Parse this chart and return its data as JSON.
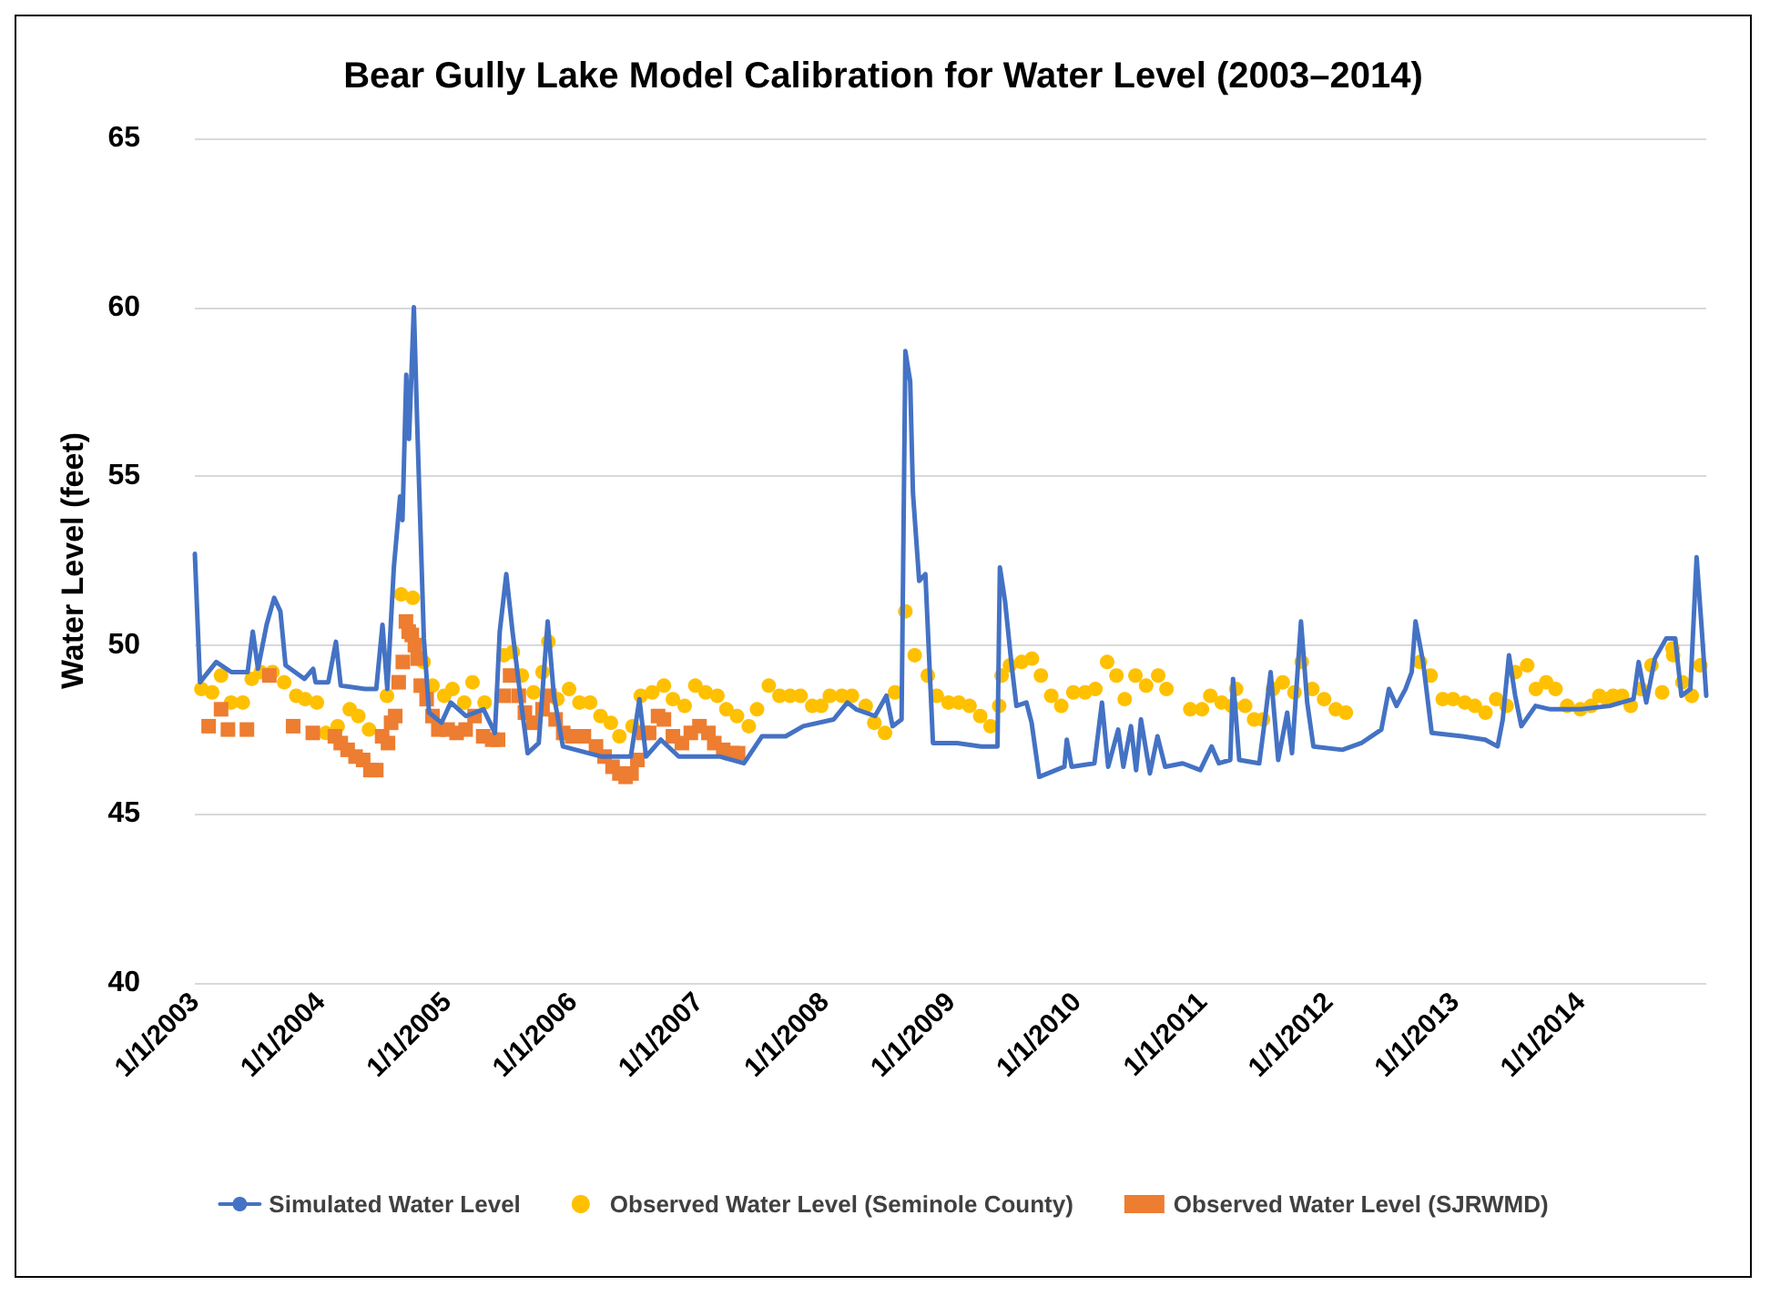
{
  "chart_data": {
    "type": "line",
    "title": "Bear Gully Lake Model Calibration for Water Level (2003–2014)",
    "ylabel": "Water Level (feet)",
    "xlim": [
      "2003-01-01",
      "2014-12-31"
    ],
    "xticks": [
      {
        "value": "2003-01-01",
        "label": "1/1/2003"
      },
      {
        "value": "2004-01-01",
        "label": "1/1/2004"
      },
      {
        "value": "2005-01-01",
        "label": "1/1/2005"
      },
      {
        "value": "2006-01-01",
        "label": "1/1/2006"
      },
      {
        "value": "2007-01-01",
        "label": "1/1/2007"
      },
      {
        "value": "2008-01-01",
        "label": "1/1/2008"
      },
      {
        "value": "2009-01-01",
        "label": "1/1/2009"
      },
      {
        "value": "2010-01-01",
        "label": "1/1/2010"
      },
      {
        "value": "2011-01-01",
        "label": "1/1/2011"
      },
      {
        "value": "2012-01-01",
        "label": "1/1/2012"
      },
      {
        "value": "2013-01-01",
        "label": "1/1/2013"
      },
      {
        "value": "2014-01-01",
        "label": "1/1/2014"
      }
    ],
    "ylim": [
      40,
      65
    ],
    "yticks": [
      40,
      45,
      50,
      55,
      60,
      65
    ],
    "grid": "y",
    "legend": "bottom",
    "series": [
      {
        "name": "Simulated Water Level",
        "marker": "none",
        "line_style": "solid",
        "color": "#4472c4",
        "x": [
          "2003-01-01",
          "2003-01-16",
          "2003-03-04",
          "2003-04-17",
          "2003-06-03",
          "2003-06-18",
          "2003-07-03",
          "2003-07-28",
          "2003-08-19",
          "2003-09-06",
          "2003-09-21",
          "2003-11-15",
          "2003-12-10",
          "2003-12-17",
          "2004-01-23",
          "2004-02-14",
          "2004-02-28",
          "2004-05-08",
          "2004-06-10",
          "2004-06-28",
          "2004-07-12",
          "2004-07-31",
          "2004-08-18",
          "2004-08-25",
          "2004-09-05",
          "2004-09-13",
          "2004-09-27",
          "2004-10-08",
          "2004-10-26",
          "2004-11-10",
          "2004-12-16",
          "2005-01-12",
          "2005-02-25",
          "2005-04-17",
          "2005-05-20",
          "2005-06-03",
          "2005-06-22",
          "2005-07-10",
          "2005-08-04",
          "2005-08-23",
          "2005-09-24",
          "2005-10-20",
          "2005-11-07",
          "2005-12-03",
          "2006-03-26",
          "2006-06-18",
          "2006-07-13",
          "2006-08-01",
          "2006-09-13",
          "2006-11-04",
          "2007-02-14",
          "2007-03-04",
          "2007-05-12",
          "2007-07-03",
          "2007-09-10",
          "2007-10-31",
          "2008-01-27",
          "2008-03-07",
          "2008-04-01",
          "2008-05-26",
          "2008-06-28",
          "2008-07-16",
          "2008-08-11",
          "2008-08-22",
          "2008-09-05",
          "2008-09-13",
          "2008-10-01",
          "2008-10-19",
          "2008-11-03",
          "2008-11-10",
          "2009-01-19",
          "2009-03-30",
          "2009-05-16",
          "2009-05-23",
          "2009-06-07",
          "2009-06-25",
          "2009-07-10",
          "2009-08-08",
          "2009-08-23",
          "2009-09-14",
          "2009-11-26",
          "2009-12-03",
          "2009-12-17",
          "2010-02-21",
          "2010-03-15",
          "2010-04-02",
          "2010-05-01",
          "2010-05-16",
          "2010-06-07",
          "2010-06-22",
          "2010-07-06",
          "2010-08-01",
          "2010-08-23",
          "2010-09-14",
          "2010-11-04",
          "2010-12-25",
          "2011-01-27",
          "2011-02-17",
          "2011-03-22",
          "2011-03-30",
          "2011-04-17",
          "2011-06-14",
          "2011-07-03",
          "2011-07-17",
          "2011-08-08",
          "2011-09-03",
          "2011-09-17",
          "2011-10-13",
          "2011-10-31",
          "2011-11-18",
          "2012-02-10",
          "2012-04-05",
          "2012-06-02",
          "2012-06-24",
          "2012-07-16",
          "2012-08-11",
          "2012-08-29",
          "2012-09-09",
          "2012-10-01",
          "2012-10-26",
          "2013-01-23",
          "2013-03-30",
          "2013-05-05",
          "2013-05-20",
          "2013-06-07",
          "2013-06-25",
          "2013-07-13",
          "2013-08-23",
          "2013-10-05",
          "2014-01-01",
          "2014-03-26",
          "2014-06-03",
          "2014-06-18",
          "2014-07-10",
          "2014-08-04",
          "2014-09-06",
          "2014-10-02",
          "2014-10-20",
          "2014-11-15",
          "2014-12-03",
          "2014-12-17",
          "2014-12-31"
        ],
        "values": [
          52.7,
          48.9,
          49.5,
          49.2,
          49.2,
          50.4,
          49.3,
          50.6,
          51.4,
          51.0,
          49.4,
          49.0,
          49.3,
          48.9,
          48.9,
          50.1,
          48.8,
          48.7,
          48.7,
          50.6,
          48.7,
          52.3,
          54.4,
          53.7,
          58.0,
          56.1,
          60.0,
          56.1,
          50.2,
          48.0,
          47.7,
          48.3,
          47.9,
          48.1,
          47.4,
          50.4,
          52.1,
          50.4,
          48.3,
          46.8,
          47.1,
          50.7,
          48.5,
          47.0,
          46.7,
          46.7,
          48.4,
          46.7,
          47.2,
          46.7,
          46.7,
          46.7,
          46.5,
          47.3,
          47.3,
          47.6,
          47.8,
          48.3,
          48.1,
          47.9,
          48.5,
          47.6,
          47.8,
          58.7,
          57.8,
          54.5,
          51.9,
          52.1,
          48.7,
          47.1,
          47.1,
          47.0,
          47.0,
          52.3,
          51.3,
          49.5,
          48.2,
          48.3,
          47.7,
          46.1,
          46.4,
          47.2,
          46.4,
          46.5,
          48.3,
          46.4,
          47.5,
          46.4,
          47.6,
          46.3,
          47.8,
          46.2,
          47.3,
          46.4,
          46.5,
          46.3,
          47.0,
          46.5,
          46.6,
          49.0,
          46.6,
          46.5,
          48.0,
          49.2,
          46.6,
          48.0,
          46.8,
          50.7,
          48.3,
          47.0,
          46.9,
          47.1,
          47.5,
          48.7,
          48.2,
          48.7,
          49.2,
          50.7,
          49.5,
          47.4,
          47.3,
          47.2,
          47.0,
          47.8,
          49.7,
          48.5,
          47.6,
          48.2,
          48.1,
          48.1,
          48.2,
          48.4,
          49.5,
          48.3,
          49.6,
          50.2,
          50.2,
          48.5,
          48.7,
          52.6,
          50.6,
          48.5
        ]
      },
      {
        "name": "Observed Water Level (Seminole County)",
        "type": "scatter",
        "marker": "circle",
        "color": "#ffc000",
        "x": [
          "2003-01-20",
          "2003-02-20",
          "2003-03-18",
          "2003-04-16",
          "2003-05-20",
          "2003-06-15",
          "2003-07-11",
          "2003-08-14",
          "2003-09-17",
          "2003-10-22",
          "2003-11-17",
          "2003-12-21",
          "2004-01-16",
          "2004-02-19",
          "2004-03-25",
          "2004-04-19",
          "2004-05-20",
          "2004-07-11",
          "2004-08-21",
          "2004-09-24",
          "2004-10-25",
          "2004-11-20",
          "2004-12-24",
          "2005-01-17",
          "2005-02-20",
          "2005-03-16",
          "2005-04-20",
          "2005-06-15",
          "2005-07-11",
          "2005-08-06",
          "2005-09-09",
          "2005-10-05",
          "2005-10-22",
          "2005-11-17",
          "2005-12-21",
          "2006-01-20",
          "2006-02-20",
          "2006-03-22",
          "2006-04-21",
          "2006-05-16",
          "2006-06-23",
          "2006-07-17",
          "2006-08-19",
          "2006-09-22",
          "2006-10-18",
          "2006-11-21",
          "2006-12-22",
          "2007-01-21",
          "2007-02-24",
          "2007-03-22",
          "2007-04-22",
          "2007-05-26",
          "2007-06-19",
          "2007-07-23",
          "2007-08-23",
          "2007-09-23",
          "2007-10-23",
          "2007-11-26",
          "2007-12-22",
          "2008-01-16",
          "2008-02-20",
          "2008-03-20",
          "2008-04-29",
          "2008-05-24",
          "2008-06-24",
          "2008-07-23",
          "2008-08-22",
          "2008-09-18",
          "2008-10-26",
          "2008-11-21",
          "2008-12-25",
          "2009-01-24",
          "2009-02-24",
          "2009-03-27",
          "2009-04-26",
          "2009-05-21",
          "2009-05-28",
          "2009-06-21",
          "2009-07-25",
          "2009-08-24",
          "2009-09-19",
          "2009-10-19",
          "2009-11-17",
          "2009-12-22",
          "2010-01-25",
          "2010-02-24",
          "2010-03-30",
          "2010-04-26",
          "2010-05-20",
          "2010-06-20",
          "2010-07-21",
          "2010-08-25",
          "2010-09-18",
          "2010-11-26",
          "2010-12-30",
          "2011-01-23",
          "2011-02-25",
          "2011-03-26",
          "2011-04-08",
          "2011-05-04",
          "2011-05-30",
          "2011-06-25",
          "2011-07-24",
          "2011-08-21",
          "2011-09-24",
          "2011-10-15",
          "2011-11-15",
          "2011-12-19",
          "2012-01-22",
          "2012-02-20",
          "2012-09-22",
          "2012-10-23",
          "2012-11-27",
          "2012-12-27",
          "2013-01-30",
          "2013-02-28",
          "2013-03-31",
          "2013-05-01",
          "2013-05-31",
          "2013-06-25",
          "2013-07-30",
          "2013-08-24",
          "2013-09-23",
          "2013-10-20",
          "2013-11-23",
          "2013-12-31",
          "2014-01-31",
          "2014-02-24",
          "2014-03-19",
          "2014-04-05",
          "2014-05-01",
          "2014-05-26",
          "2014-06-24",
          "2014-07-25",
          "2014-08-25",
          "2014-09-24",
          "2014-09-26",
          "2014-10-23",
          "2014-11-19",
          "2014-12-14"
        ],
        "values": [
          48.7,
          48.6,
          49.1,
          48.3,
          48.3,
          49.0,
          49.2,
          49.2,
          48.9,
          48.5,
          48.4,
          48.3,
          47.4,
          47.6,
          48.1,
          47.9,
          47.5,
          48.5,
          51.5,
          51.4,
          49.5,
          48.8,
          48.5,
          48.7,
          48.3,
          48.9,
          48.3,
          49.7,
          49.8,
          49.1,
          48.6,
          49.2,
          50.1,
          48.4,
          48.7,
          48.3,
          48.3,
          47.9,
          47.7,
          47.3,
          47.6,
          48.5,
          48.6,
          48.8,
          48.4,
          48.2,
          48.8,
          48.6,
          48.5,
          48.1,
          47.9,
          47.6,
          48.1,
          48.8,
          48.5,
          48.5,
          48.5,
          48.2,
          48.2,
          48.5,
          48.5,
          48.5,
          48.2,
          47.7,
          47.4,
          48.6,
          51.0,
          49.7,
          49.1,
          48.5,
          48.3,
          48.3,
          48.2,
          47.9,
          47.6,
          48.2,
          49.1,
          49.4,
          49.5,
          49.6,
          49.1,
          48.5,
          48.2,
          48.6,
          48.6,
          48.7,
          49.5,
          49.1,
          48.4,
          49.1,
          48.8,
          49.1,
          48.7,
          48.1,
          48.1,
          48.5,
          48.3,
          48.2,
          48.7,
          48.2,
          47.8,
          47.8,
          48.7,
          48.9,
          48.6,
          49.5,
          48.7,
          48.4,
          48.1,
          48.0,
          49.5,
          49.1,
          48.4,
          48.4,
          48.3,
          48.2,
          48.0,
          48.4,
          48.2,
          49.2,
          49.4,
          48.7,
          48.9,
          48.7,
          48.2,
          48.1,
          48.2,
          48.5,
          48.4,
          48.5,
          48.5,
          48.2,
          48.7,
          49.4,
          48.6,
          49.9,
          49.7,
          48.9,
          48.5,
          49.4
        ]
      },
      {
        "name": "Observed Water Level (SJRWMD)",
        "type": "scatter",
        "marker": "square",
        "color": "#ed7d31",
        "x": [
          "2003-02-10",
          "2003-03-18",
          "2003-04-07",
          "2003-06-01",
          "2003-08-05",
          "2003-10-13",
          "2003-12-09",
          "2004-02-11",
          "2004-02-28",
          "2004-03-19",
          "2004-04-11",
          "2004-05-03",
          "2004-05-24",
          "2004-06-10",
          "2004-06-27",
          "2004-07-14",
          "2004-07-23",
          "2004-08-04",
          "2004-08-14",
          "2004-08-26",
          "2004-09-04",
          "2004-09-12",
          "2004-09-21",
          "2004-09-30",
          "2004-10-08",
          "2004-10-17",
          "2004-11-03",
          "2004-11-20",
          "2004-12-07",
          "2005-01-03",
          "2005-01-29",
          "2005-02-24",
          "2005-03-22",
          "2005-04-16",
          "2005-05-12",
          "2005-05-29",
          "2005-06-15",
          "2005-07-03",
          "2005-07-28",
          "2005-08-15",
          "2005-09-09",
          "2005-10-05",
          "2005-10-25",
          "2005-11-12",
          "2005-12-04",
          "2005-12-30",
          "2006-02-02",
          "2006-03-09",
          "2006-04-03",
          "2006-04-26",
          "2006-05-16",
          "2006-06-03",
          "2006-06-20",
          "2006-07-07",
          "2006-07-24",
          "2006-08-10",
          "2006-09-05",
          "2006-09-22",
          "2006-10-18",
          "2006-11-13",
          "2006-12-09",
          "2007-01-03",
          "2007-01-29",
          "2007-02-15",
          "2007-03-13",
          "2007-04-08",
          "2007-04-25"
        ],
        "values": [
          47.6,
          48.1,
          47.5,
          47.5,
          49.1,
          47.6,
          47.4,
          47.3,
          47.1,
          46.9,
          46.7,
          46.6,
          46.3,
          46.3,
          47.3,
          47.1,
          47.7,
          47.9,
          48.9,
          49.5,
          50.7,
          50.4,
          50.3,
          50.0,
          49.6,
          48.8,
          48.4,
          47.9,
          47.5,
          47.5,
          47.4,
          47.5,
          47.9,
          47.3,
          47.2,
          47.2,
          48.5,
          49.1,
          48.5,
          48.0,
          47.7,
          48.1,
          48.5,
          47.8,
          47.4,
          47.3,
          47.3,
          47.0,
          46.7,
          46.4,
          46.2,
          46.1,
          46.2,
          46.6,
          47.4,
          47.4,
          47.9,
          47.8,
          47.3,
          47.1,
          47.4,
          47.6,
          47.4,
          47.1,
          46.9,
          46.8,
          46.8
        ]
      }
    ]
  }
}
